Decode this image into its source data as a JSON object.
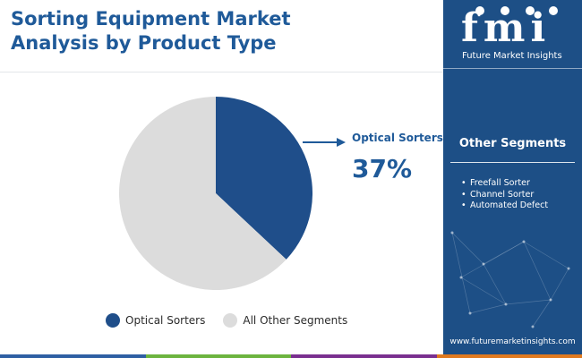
{
  "title_line1": "Sorting Equipment Market",
  "title_line2": "Analysis by Product Type",
  "chart_data": {
    "type": "pie",
    "title": "Sorting Equipment Market Analysis by Product Type",
    "slices": [
      {
        "label": "Optical Sorters",
        "value": 37,
        "color": "#1f4e8a"
      },
      {
        "label": "All Other Segments",
        "value": 63,
        "color": "#dcdcdc"
      }
    ],
    "callout": {
      "label": "Optical Sorters",
      "value": "37%"
    },
    "legend_position": "bottom"
  },
  "sidebar": {
    "logo_text": "fmi",
    "logo_caption": "Future Market Insights",
    "segments_title": "Other Segments",
    "segments": [
      "Freefall Sorter",
      "Channel Sorter",
      "Automated Defect"
    ],
    "url": "www.futuremarketinsights.com"
  },
  "colors": {
    "brand_blue": "#1f5a99",
    "sidebar_bg": "#1d4f86",
    "bottom_bar": [
      "#2e5fa3",
      "#6cb43f",
      "#7a2f8f",
      "#e07a1f"
    ]
  }
}
